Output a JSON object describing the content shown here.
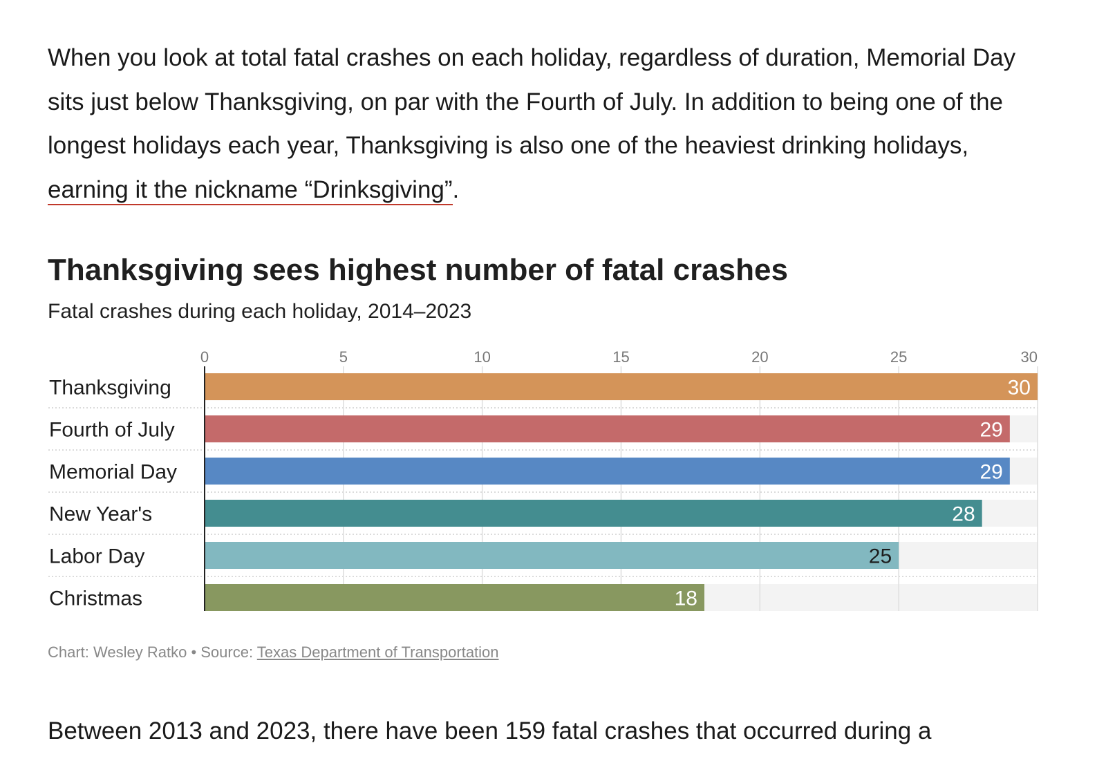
{
  "article": {
    "intro_text": "When you look at total fatal crashes on each holiday, regardless of duration, Memorial Day sits just below Thanksgiving, on par with the Fourth of July. In addition to being one of the longest holidays each year, Thanksgiving is also one of the heaviest drinking holidays, ",
    "intro_link": "earning it the nickname “Drinksgiving”",
    "intro_end": ".",
    "next_paragraph": "Between 2013 and 2023, there have been 159 fatal crashes that occurred during a"
  },
  "chart_data": {
    "type": "bar",
    "orientation": "horizontal",
    "title": "Thanksgiving sees highest number of fatal crashes",
    "subtitle": "Fatal crashes during each holiday, 2014–2023",
    "categories": [
      "Thanksgiving",
      "Fourth of July",
      "Memorial Day",
      "New Year's",
      "Labor Day",
      "Christmas"
    ],
    "values": [
      30,
      29,
      29,
      28,
      25,
      18
    ],
    "colors": [
      "#d49459",
      "#c46a6a",
      "#5788c4",
      "#448d90",
      "#82b8c0",
      "#889860"
    ],
    "label_colors": [
      "#ffffff",
      "#ffffff",
      "#ffffff",
      "#ffffff",
      "#1d1d1d",
      "#ffffff"
    ],
    "xlim": [
      0,
      30
    ],
    "xticks": [
      "0",
      "5",
      "10",
      "15",
      "20",
      "25",
      "30"
    ],
    "grid": true,
    "axis_position": "top"
  },
  "footer": {
    "credit": "Chart: Wesley Ratko • Source: ",
    "source_link": "Texas Department of Transportation"
  }
}
